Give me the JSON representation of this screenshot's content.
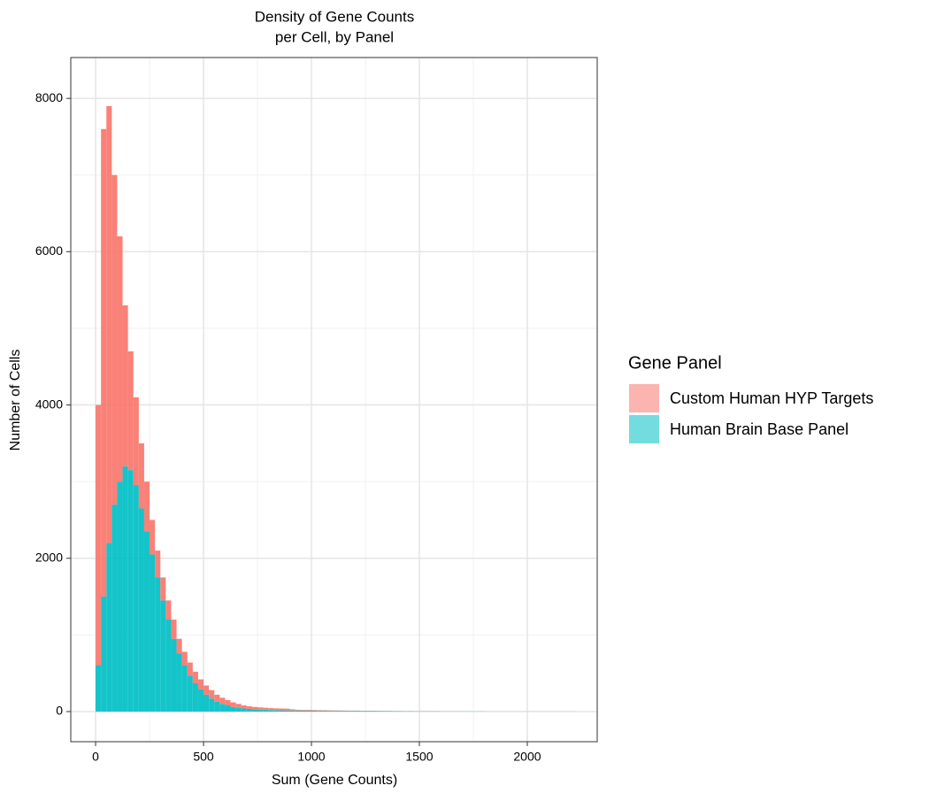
{
  "chart_data": {
    "type": "histogram",
    "title": [
      "Density of Gene Counts",
      "per Cell, by Panel"
    ],
    "x_label": "Sum (Gene Counts)",
    "y_label": "Number of Cells",
    "legend_title": "Gene Panel",
    "legend": "right",
    "stacked": true,
    "grid": true,
    "bins": [
      0,
      25,
      50,
      75,
      100,
      125,
      150,
      175,
      200,
      225,
      250,
      275,
      300,
      325,
      350,
      375,
      400,
      425,
      450,
      475,
      500,
      525,
      550,
      575,
      600,
      625,
      650,
      675,
      700,
      725,
      750,
      775,
      800,
      825,
      850,
      875,
      900,
      925,
      950,
      975,
      1000,
      1025,
      1050,
      1075,
      1100,
      1125,
      1150,
      1175,
      1200,
      1225,
      1250,
      1275,
      1300,
      1325,
      1350,
      1375,
      1400,
      1425,
      1450,
      1475,
      1500,
      1525,
      1550,
      1575,
      1600,
      1625,
      1650,
      1675,
      1700,
      1725,
      1750,
      1775,
      1800,
      1825,
      1850,
      1875,
      1900,
      1925,
      1950,
      1975,
      2000,
      2025,
      2050,
      2075,
      2100,
      2125,
      2150,
      2175,
      2200,
      2225
    ],
    "series": [
      {
        "name": "Custom Human HYP Targets",
        "color": "#F8766D",
        "values": [
          3400,
          6100,
          5700,
          4300,
          3200,
          2100,
          1550,
          1150,
          850,
          650,
          450,
          350,
          300,
          250,
          250,
          190,
          180,
          170,
          150,
          130,
          120,
          110,
          90,
          80,
          70,
          60,
          50,
          40,
          35,
          30,
          30,
          28,
          25,
          24,
          24,
          23,
          16,
          10,
          9,
          9,
          8,
          8,
          7,
          7,
          6,
          6,
          5,
          5,
          5,
          4,
          4,
          4,
          4,
          3,
          3,
          3,
          3,
          2,
          2,
          2,
          2,
          2,
          2,
          1,
          1,
          1,
          1,
          1,
          1,
          0,
          0,
          0,
          0,
          0,
          0,
          0,
          0,
          0,
          0,
          0,
          0,
          0,
          0,
          0,
          0,
          0,
          0,
          0,
          0
        ]
      },
      {
        "name": "Human Brain Base Panel",
        "color": "#00BFC4",
        "values": [
          600,
          1500,
          2200,
          2700,
          3000,
          3200,
          3150,
          2950,
          2650,
          2350,
          2050,
          1750,
          1450,
          1200,
          950,
          760,
          600,
          470,
          370,
          290,
          220,
          170,
          130,
          100,
          80,
          60,
          50,
          40,
          35,
          30,
          25,
          22,
          20,
          18,
          16,
          15,
          14,
          14,
          13,
          12,
          11,
          10,
          10,
          9,
          9,
          8,
          8,
          7,
          7,
          6,
          6,
          6,
          5,
          5,
          5,
          4,
          4,
          4,
          4,
          3,
          3,
          3,
          3,
          3,
          2,
          2,
          2,
          2,
          2,
          2,
          2,
          2,
          1,
          1,
          1,
          1,
          1,
          1,
          1,
          1,
          1,
          1,
          1,
          1,
          1,
          1,
          1,
          1,
          1
        ]
      }
    ],
    "xlim": [
      -115,
      2324
    ],
    "xticks": [
      0,
      500,
      1000,
      1500,
      2000
    ],
    "ylim": [
      -393,
      8533
    ],
    "yticks": [
      0,
      2000,
      4000,
      6000,
      8000
    ]
  }
}
